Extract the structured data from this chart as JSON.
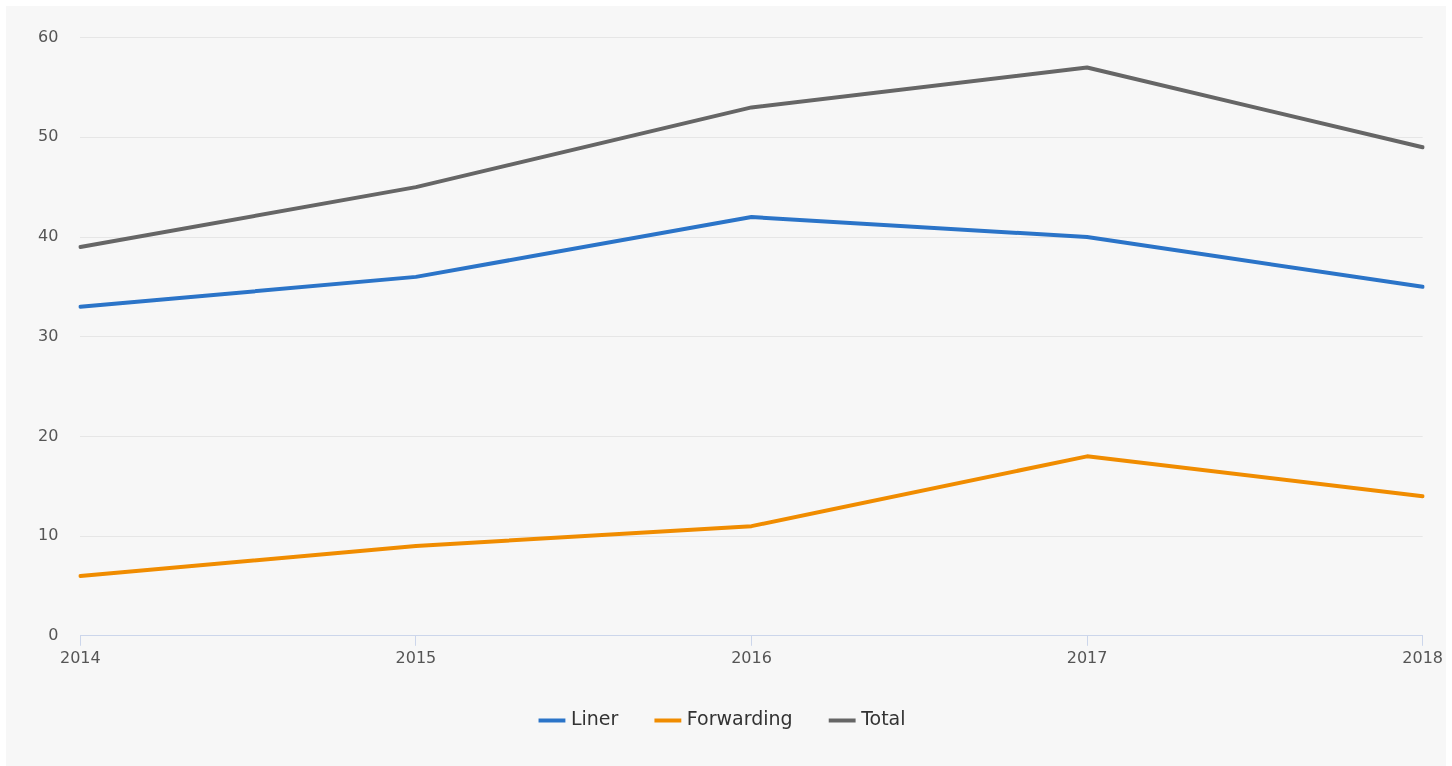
{
  "chart_data": {
    "type": "line",
    "categories": [
      "2014",
      "2015",
      "2016",
      "2017",
      "2018"
    ],
    "series": [
      {
        "name": "Liner",
        "color": "#2b74c8",
        "values": [
          33,
          36,
          42,
          40,
          35
        ]
      },
      {
        "name": "Forwarding",
        "color": "#f08c00",
        "values": [
          6,
          9,
          11,
          18,
          14
        ]
      },
      {
        "name": "Total",
        "color": "#666666",
        "values": [
          39,
          45,
          53,
          57,
          49
        ]
      }
    ],
    "ylim": [
      0,
      60
    ],
    "yticks": [
      0,
      10,
      20,
      30,
      40,
      50,
      60
    ],
    "grid": "y",
    "legend": "bottom",
    "marker": "none",
    "line_style": "solid"
  }
}
